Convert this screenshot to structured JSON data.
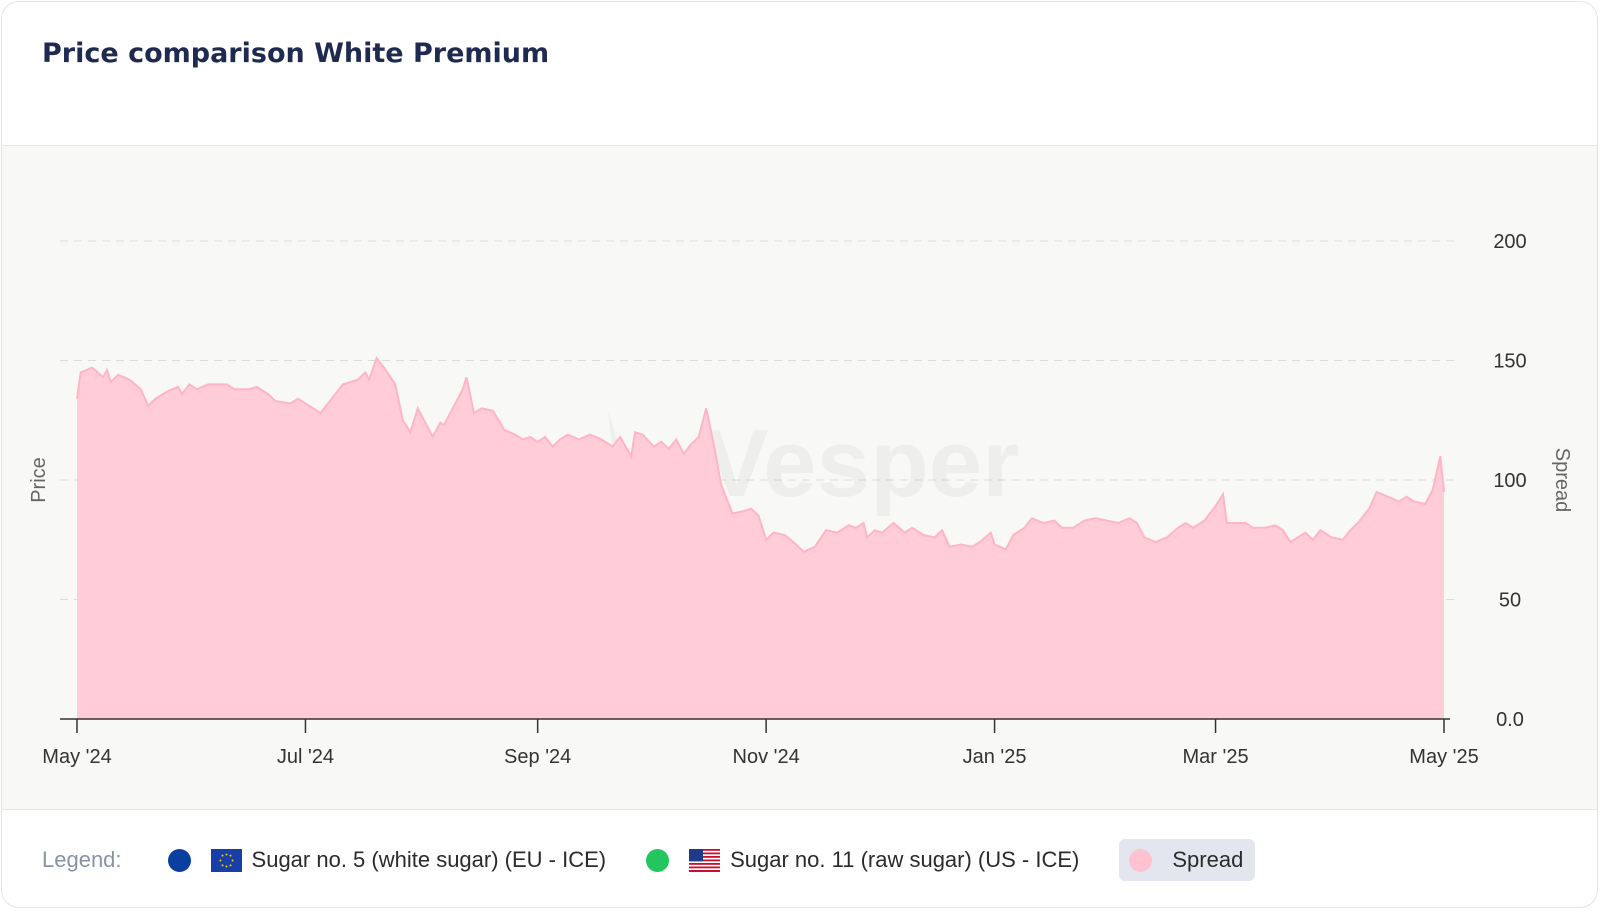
{
  "title": "Price comparison White Premium",
  "watermark": "Vesper",
  "legend": {
    "caption": "Legend:",
    "items": [
      {
        "label": "Sugar no. 5 (white sugar) (EU - ICE)",
        "color": "#0a3fa0",
        "flag": "eu-flag-icon",
        "active": false
      },
      {
        "label": "Sugar no. 11 (raw sugar) (US - ICE)",
        "color": "#22c55e",
        "flag": "us-flag-icon",
        "active": false
      },
      {
        "label": "Spread",
        "color": "#ffc2d0",
        "flag": null,
        "active": true
      }
    ]
  },
  "chart_data": {
    "type": "area",
    "ylabel_left": "Price",
    "ylabel_right": "Spread",
    "y_ticks": [
      "0.0",
      "50",
      "100",
      "150",
      "200"
    ],
    "ylim": [
      0,
      200
    ],
    "x_ticks": [
      "May '24",
      "Jul '24",
      "Sep '24",
      "Nov '24",
      "Jan '25",
      "Mar '25",
      "May '25"
    ],
    "x_tick_dates": [
      "2024-05-01",
      "2024-07-01",
      "2024-09-01",
      "2024-11-01",
      "2025-01-01",
      "2025-03-01",
      "2025-05-01"
    ],
    "xlim": [
      "2024-05-01",
      "2025-05-01"
    ],
    "grid": true,
    "fill_color": "#ffccd8",
    "line_color": "#ffb5c6",
    "series": [
      {
        "name": "Spread",
        "points": [
          [
            "2024-05-01",
            134
          ],
          [
            "2024-05-02",
            145
          ],
          [
            "2024-05-05",
            147
          ],
          [
            "2024-05-08",
            143
          ],
          [
            "2024-05-09",
            146
          ],
          [
            "2024-05-10",
            141
          ],
          [
            "2024-05-12",
            144
          ],
          [
            "2024-05-15",
            142
          ],
          [
            "2024-05-18",
            138
          ],
          [
            "2024-05-20",
            131
          ],
          [
            "2024-05-22",
            134
          ],
          [
            "2024-05-25",
            137
          ],
          [
            "2024-05-28",
            139
          ],
          [
            "2024-05-29",
            136
          ],
          [
            "2024-05-31",
            140
          ],
          [
            "2024-06-02",
            138
          ],
          [
            "2024-06-05",
            140
          ],
          [
            "2024-06-10",
            140
          ],
          [
            "2024-06-12",
            138
          ],
          [
            "2024-06-16",
            138
          ],
          [
            "2024-06-18",
            139
          ],
          [
            "2024-06-21",
            136
          ],
          [
            "2024-06-23",
            133
          ],
          [
            "2024-06-27",
            132
          ],
          [
            "2024-06-29",
            134
          ],
          [
            "2024-07-02",
            131
          ],
          [
            "2024-07-05",
            128
          ],
          [
            "2024-07-08",
            134
          ],
          [
            "2024-07-11",
            140
          ],
          [
            "2024-07-15",
            142
          ],
          [
            "2024-07-17",
            145
          ],
          [
            "2024-07-18",
            142
          ],
          [
            "2024-07-20",
            151
          ],
          [
            "2024-07-22",
            147
          ],
          [
            "2024-07-25",
            140
          ],
          [
            "2024-07-27",
            125
          ],
          [
            "2024-07-29",
            120
          ],
          [
            "2024-07-31",
            130
          ],
          [
            "2024-08-02",
            124
          ],
          [
            "2024-08-04",
            118
          ],
          [
            "2024-08-06",
            124
          ],
          [
            "2024-08-07",
            123
          ],
          [
            "2024-08-10",
            132
          ],
          [
            "2024-08-12",
            138
          ],
          [
            "2024-08-13",
            143
          ],
          [
            "2024-08-15",
            128
          ],
          [
            "2024-08-17",
            130
          ],
          [
            "2024-08-20",
            129
          ],
          [
            "2024-08-22",
            124
          ],
          [
            "2024-08-23",
            121
          ],
          [
            "2024-08-26",
            119
          ],
          [
            "2024-08-28",
            117
          ],
          [
            "2024-08-30",
            118
          ],
          [
            "2024-09-01",
            116
          ],
          [
            "2024-09-03",
            118
          ],
          [
            "2024-09-05",
            114
          ],
          [
            "2024-09-07",
            117
          ],
          [
            "2024-09-09",
            119
          ],
          [
            "2024-09-12",
            117
          ],
          [
            "2024-09-15",
            119
          ],
          [
            "2024-09-18",
            117
          ],
          [
            "2024-09-21",
            114
          ],
          [
            "2024-09-23",
            118
          ],
          [
            "2024-09-26",
            110
          ],
          [
            "2024-09-27",
            120
          ],
          [
            "2024-09-29",
            119
          ],
          [
            "2024-10-02",
            114
          ],
          [
            "2024-10-04",
            116
          ],
          [
            "2024-10-06",
            113
          ],
          [
            "2024-10-08",
            117
          ],
          [
            "2024-10-10",
            111
          ],
          [
            "2024-10-12",
            115
          ],
          [
            "2024-10-14",
            118
          ],
          [
            "2024-10-16",
            130
          ],
          [
            "2024-10-18",
            115
          ],
          [
            "2024-10-20",
            98
          ],
          [
            "2024-10-23",
            86
          ],
          [
            "2024-10-26",
            87
          ],
          [
            "2024-10-28",
            88
          ],
          [
            "2024-10-30",
            85
          ],
          [
            "2024-11-01",
            75
          ],
          [
            "2024-11-03",
            78
          ],
          [
            "2024-11-06",
            77
          ],
          [
            "2024-11-09",
            73
          ],
          [
            "2024-11-11",
            70
          ],
          [
            "2024-11-14",
            72
          ],
          [
            "2024-11-17",
            79
          ],
          [
            "2024-11-20",
            78
          ],
          [
            "2024-11-23",
            81
          ],
          [
            "2024-11-25",
            80
          ],
          [
            "2024-11-27",
            82
          ],
          [
            "2024-11-28",
            76
          ],
          [
            "2024-11-30",
            79
          ],
          [
            "2024-12-02",
            78
          ],
          [
            "2024-12-05",
            82
          ],
          [
            "2024-12-08",
            78
          ],
          [
            "2024-12-10",
            80
          ],
          [
            "2024-12-13",
            77
          ],
          [
            "2024-12-16",
            76
          ],
          [
            "2024-12-18",
            79
          ],
          [
            "2024-12-20",
            72
          ],
          [
            "2024-12-23",
            73
          ],
          [
            "2024-12-26",
            72
          ],
          [
            "2024-12-28",
            74
          ],
          [
            "2024-12-31",
            78
          ],
          [
            "2025-01-01",
            73
          ],
          [
            "2025-01-04",
            71
          ],
          [
            "2025-01-06",
            77
          ],
          [
            "2025-01-09",
            80
          ],
          [
            "2025-01-11",
            84
          ],
          [
            "2025-01-14",
            82
          ],
          [
            "2025-01-17",
            83
          ],
          [
            "2025-01-19",
            80
          ],
          [
            "2025-01-22",
            80
          ],
          [
            "2025-01-25",
            83
          ],
          [
            "2025-01-28",
            84
          ],
          [
            "2025-01-31",
            83
          ],
          [
            "2025-02-03",
            82
          ],
          [
            "2025-02-06",
            84
          ],
          [
            "2025-02-08",
            82
          ],
          [
            "2025-02-10",
            76
          ],
          [
            "2025-02-13",
            74
          ],
          [
            "2025-02-16",
            76
          ],
          [
            "2025-02-19",
            80
          ],
          [
            "2025-02-21",
            82
          ],
          [
            "2025-02-23",
            80
          ],
          [
            "2025-02-26",
            83
          ],
          [
            "2025-03-01",
            89
          ],
          [
            "2025-03-03",
            94
          ],
          [
            "2025-03-04",
            82
          ],
          [
            "2025-03-06",
            82
          ],
          [
            "2025-03-09",
            82
          ],
          [
            "2025-03-11",
            80
          ],
          [
            "2025-03-14",
            80
          ],
          [
            "2025-03-17",
            81
          ],
          [
            "2025-03-19",
            79
          ],
          [
            "2025-03-21",
            74
          ],
          [
            "2025-03-23",
            76
          ],
          [
            "2025-03-25",
            78
          ],
          [
            "2025-03-27",
            75
          ],
          [
            "2025-03-29",
            79
          ],
          [
            "2025-04-01",
            76
          ],
          [
            "2025-04-04",
            75
          ],
          [
            "2025-04-06",
            79
          ],
          [
            "2025-04-08",
            82
          ],
          [
            "2025-04-11",
            88
          ],
          [
            "2025-04-13",
            95
          ],
          [
            "2025-04-16",
            93
          ],
          [
            "2025-04-19",
            91
          ],
          [
            "2025-04-21",
            93
          ],
          [
            "2025-04-23",
            91
          ],
          [
            "2025-04-26",
            90
          ],
          [
            "2025-04-28",
            96
          ],
          [
            "2025-04-30",
            110
          ],
          [
            "2025-05-01",
            95
          ]
        ]
      }
    ]
  }
}
